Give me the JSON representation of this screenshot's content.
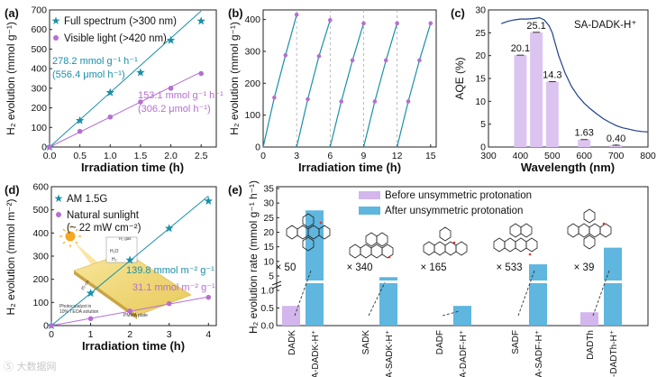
{
  "watermark": "Ⓢ 大数据网",
  "chart_data": [
    {
      "panel": "(a)",
      "type": "scatter",
      "xlabel": "Irradiation time (h)",
      "ylabel": "H₂ evolution (mmol g⁻¹)",
      "xlim": [
        0,
        2.75
      ],
      "ylim": [
        0,
        700
      ],
      "xticks": [
        0,
        0.5,
        1.0,
        1.5,
        2.0,
        2.5
      ],
      "xtick_labels": [
        "0.0",
        "0.5",
        "1.0",
        "1.5",
        "2.0",
        "2.5"
      ],
      "yticks": [
        0,
        100,
        200,
        300,
        400,
        500,
        600,
        700
      ],
      "legend_position": "top-left",
      "series": [
        {
          "name": "Full spectrum (>300 nm)",
          "marker": "star",
          "color": "#1b8fa8",
          "x": [
            0,
            0.5,
            1.0,
            1.5,
            2.0,
            2.5
          ],
          "y": [
            0,
            135,
            278,
            380,
            545,
            643
          ],
          "fit": [
            [
              0,
              0
            ],
            [
              2.5,
              695
            ]
          ]
        },
        {
          "name": "Visible light (>420 nm)",
          "marker": "circle",
          "color": "#b56fd0",
          "x": [
            0,
            0.5,
            1.0,
            1.5,
            2.0,
            2.5
          ],
          "y": [
            0,
            80,
            153,
            230,
            300,
            375
          ],
          "fit": [
            [
              0,
              0
            ],
            [
              2.5,
              383
            ]
          ]
        }
      ],
      "annotations": [
        {
          "lines": [
            "278.2 mmol g⁻¹ h⁻¹",
            "(556.4 μmol h⁻¹)"
          ],
          "color": "#1b8fa8"
        },
        {
          "lines": [
            "153.1 mmol g⁻¹ h⁻¹",
            "(306.2 μmol h⁻¹)"
          ],
          "color": "#b56fd0"
        }
      ]
    },
    {
      "panel": "(b)",
      "type": "line",
      "xlabel": "Irradiation time (h)",
      "ylabel": "H₂ evolution (mmol g⁻¹)",
      "xlim": [
        0,
        15.5
      ],
      "ylim": [
        0,
        430
      ],
      "xticks": [
        0,
        3,
        6,
        9,
        12,
        15
      ],
      "yticks": [
        0,
        100,
        200,
        300,
        400
      ],
      "cycle_boundaries": [
        3,
        6,
        9,
        12
      ],
      "series": [
        {
          "color": "#1b8fa8",
          "marker_color": "#b56fd0",
          "cycles": [
            [
              [
                0,
                0
              ],
              [
                1,
                155
              ],
              [
                2,
                288
              ],
              [
                3,
                415
              ]
            ],
            [
              [
                3,
                0
              ],
              [
                4,
                150
              ],
              [
                5,
                285
              ],
              [
                6,
                398
              ]
            ],
            [
              [
                6,
                0
              ],
              [
                7,
                143
              ],
              [
                8,
                272
              ],
              [
                9,
                388
              ]
            ],
            [
              [
                9,
                0
              ],
              [
                10,
                143
              ],
              [
                11,
                272
              ],
              [
                12,
                388
              ]
            ],
            [
              [
                12,
                0
              ],
              [
                13,
                143
              ],
              [
                14,
                272
              ],
              [
                15,
                388
              ]
            ]
          ]
        }
      ]
    },
    {
      "panel": "(c)",
      "type": "bar",
      "xlabel": "Wavelength (nm)",
      "ylabel": "AQE (%)",
      "xlim": [
        300,
        800
      ],
      "ylim": [
        0,
        30
      ],
      "xticks": [
        300,
        400,
        500,
        600,
        700,
        800
      ],
      "yticks": [
        0,
        5,
        10,
        15,
        20,
        25,
        30
      ],
      "sample_label": "SA-DADK-H⁺",
      "bars": [
        {
          "x": 400,
          "value": 20.1,
          "label": "20.1",
          "error": 0.3
        },
        {
          "x": 450,
          "value": 25.1,
          "label": "25.1",
          "error": 0.3
        },
        {
          "x": 500,
          "value": 14.3,
          "label": "14.3",
          "error": 0.2
        },
        {
          "x": 600,
          "value": 1.63,
          "label": "1.63",
          "error": 0.1
        },
        {
          "x": 700,
          "value": 0.4,
          "label": "0.40",
          "error": 0.05
        }
      ],
      "absorption_curve": [
        [
          340,
          27.0
        ],
        [
          360,
          27.5
        ],
        [
          380,
          27.8
        ],
        [
          400,
          28.0
        ],
        [
          420,
          28.0
        ],
        [
          440,
          28.1
        ],
        [
          460,
          28.3
        ],
        [
          475,
          27.8
        ],
        [
          490,
          26.5
        ],
        [
          500,
          25.0
        ],
        [
          510,
          22.5
        ],
        [
          520,
          20.0
        ],
        [
          540,
          16.2
        ],
        [
          560,
          13.3
        ],
        [
          580,
          11.2
        ],
        [
          600,
          9.6
        ],
        [
          620,
          8.3
        ],
        [
          640,
          7.2
        ],
        [
          660,
          6.2
        ],
        [
          680,
          5.4
        ],
        [
          700,
          4.7
        ],
        [
          720,
          4.2
        ],
        [
          740,
          3.9
        ],
        [
          760,
          3.6
        ],
        [
          780,
          3.4
        ],
        [
          800,
          3.3
        ]
      ]
    },
    {
      "panel": "(d)",
      "type": "scatter",
      "xlabel": "Irradiation time (h)",
      "ylabel": "H₂ evolution (mmol m⁻²)",
      "xlim": [
        0,
        4.2
      ],
      "ylim": [
        0,
        600
      ],
      "xticks": [
        0,
        1,
        2,
        3,
        4
      ],
      "yticks": [
        0,
        100,
        200,
        300,
        400,
        500,
        600
      ],
      "legend_position": "top-left",
      "series": [
        {
          "name": "AM 1.5G",
          "marker": "star",
          "color": "#1b8fa8",
          "x": [
            0,
            1,
            2,
            3,
            4
          ],
          "y": [
            0,
            140,
            283,
            420,
            538
          ],
          "fit": [
            [
              0,
              0
            ],
            [
              4,
              560
            ]
          ]
        },
        {
          "name": "Natural sunlight",
          "name_line2": "(~ 22 mW cm⁻²)",
          "marker": "circle",
          "color": "#b56fd0",
          "x": [
            0,
            1,
            2,
            3,
            4
          ],
          "y": [
            0,
            30,
            63,
            95,
            122
          ],
          "fit": [
            [
              0,
              0
            ],
            [
              4,
              124
            ]
          ]
        }
      ],
      "annotations": [
        {
          "text": "139.8 mmol m⁻² g⁻¹",
          "color": "#1b8fa8"
        },
        {
          "text": "31.1 mmol m⁻² g⁻¹",
          "color": "#b56fd0"
        }
      ],
      "inset_labels": {
        "h2_gas": "H₂ gas",
        "h2o": "H₂O",
        "h2": "H₂",
        "dimension": "25 cm",
        "photocatalyst": "Photocatalyst in",
        "solution": "10% TEOA solution",
        "plate": "PMMA plate"
      }
    },
    {
      "panel": "(e)",
      "type": "bar",
      "ylabel": "H₂ evolution rate (mmol g⁻¹ h⁻¹)",
      "yticks": [
        0,
        0.5,
        1.0,
        5,
        10,
        15,
        20,
        25,
        30,
        35
      ],
      "ytick_labels": [
        "0.0",
        "0.5",
        "1.0",
        "5",
        "10",
        "15",
        "20",
        "25",
        "30",
        "35"
      ],
      "axis_break": "between 1.0 and 5",
      "legend": [
        "Before unsymmetric protonation",
        "After unsymmetric protonation"
      ],
      "legend_position": "top",
      "colors": {
        "before": "#d2b6ec",
        "after": "#5fb6de"
      },
      "categories": [
        "DADK",
        "SA-DADK-H⁺",
        "SADK",
        "SA-SADK-H⁺",
        "DADF",
        "SA-DADF-H⁺",
        "SADF",
        "SA-SADF-H⁺",
        "DADTh",
        "SA-DADTh-H⁺"
      ],
      "groups": [
        {
          "before": 0.56,
          "after": 27.5,
          "factor": "× 50"
        },
        {
          "before": null,
          "after": 4.6,
          "factor": "× 340"
        },
        {
          "before": null,
          "after": 0.56,
          "factor": "× 165"
        },
        {
          "before": null,
          "after": 9.0,
          "factor": "× 533"
        },
        {
          "before": 0.38,
          "after": 14.7,
          "factor": "× 39"
        }
      ]
    }
  ]
}
